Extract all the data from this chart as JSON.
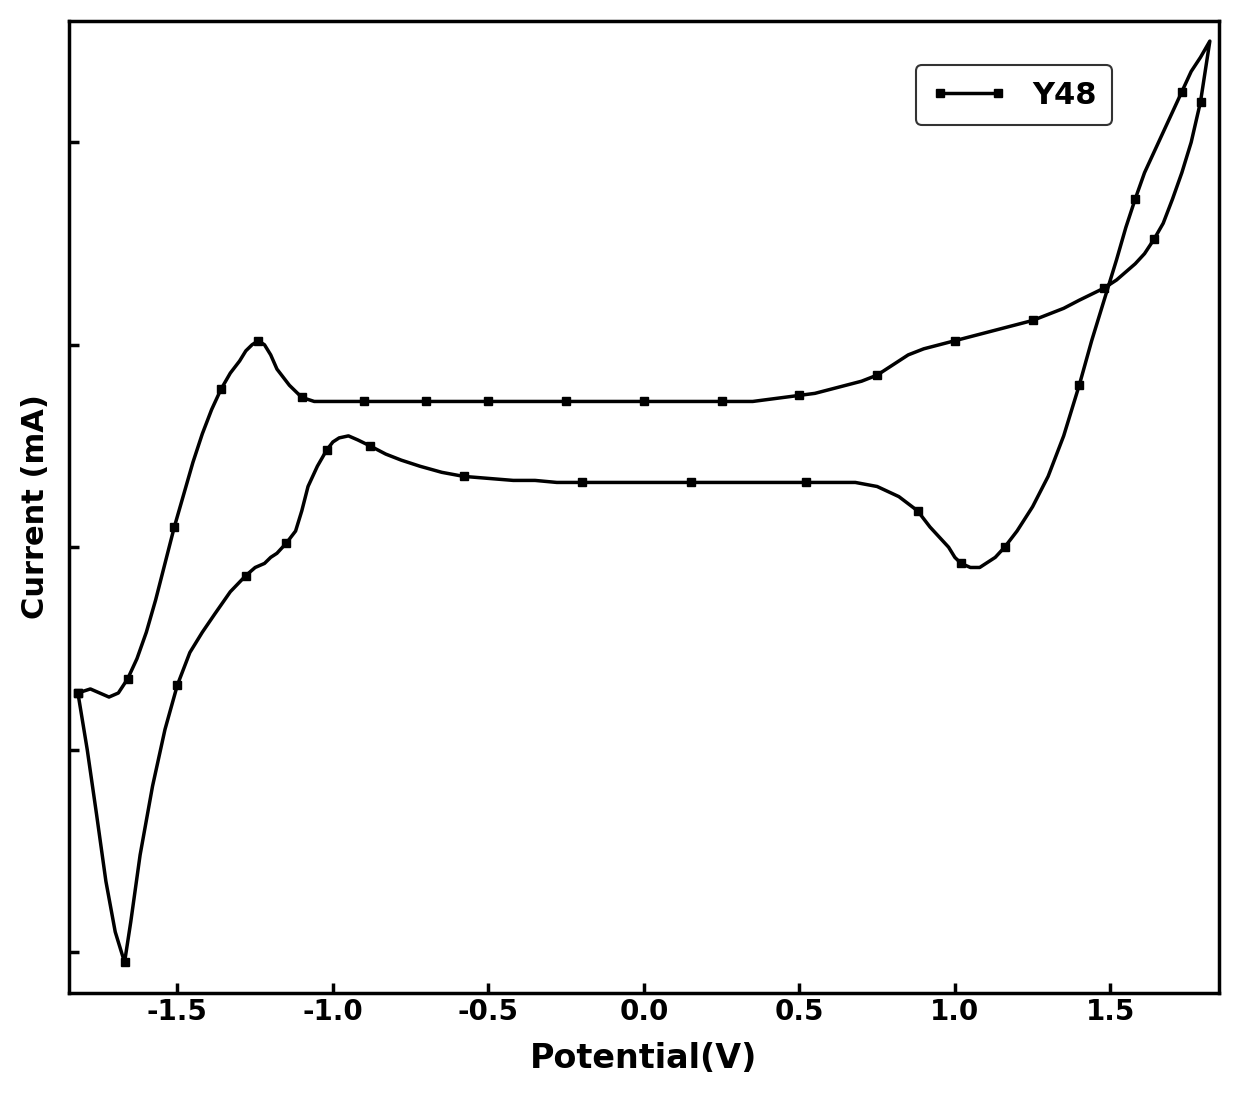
{
  "title": "",
  "xlabel": "Potential(V)",
  "ylabel": "Current (mA)",
  "legend_label": "Y48",
  "line_color": "#000000",
  "marker": "s",
  "marker_size": 6,
  "line_width": 2.5,
  "xlim": [
    -1.85,
    1.85
  ],
  "ylim": [
    -2.2,
    2.6
  ],
  "xticks": [
    -1.5,
    -1.0,
    -0.5,
    0.0,
    0.5,
    1.0,
    1.5
  ],
  "background_color": "#ffffff",
  "xlabel_fontsize": 24,
  "ylabel_fontsize": 22,
  "tick_fontsize": 20,
  "legend_fontsize": 22,
  "cv_scan": [
    [
      -1.82,
      -0.72
    ],
    [
      -1.79,
      -1.0
    ],
    [
      -1.76,
      -1.32
    ],
    [
      -1.73,
      -1.65
    ],
    [
      -1.7,
      -1.9
    ],
    [
      -1.67,
      -2.05
    ],
    [
      -1.65,
      -1.85
    ],
    [
      -1.62,
      -1.52
    ],
    [
      -1.58,
      -1.18
    ],
    [
      -1.54,
      -0.9
    ],
    [
      -1.5,
      -0.68
    ],
    [
      -1.46,
      -0.52
    ],
    [
      -1.42,
      -0.42
    ],
    [
      -1.38,
      -0.33
    ],
    [
      -1.33,
      -0.22
    ],
    [
      -1.28,
      -0.14
    ],
    [
      -1.25,
      -0.1
    ],
    [
      -1.22,
      -0.08
    ],
    [
      -1.2,
      -0.05
    ],
    [
      -1.18,
      -0.03
    ],
    [
      -1.15,
      0.02
    ],
    [
      -1.12,
      0.08
    ],
    [
      -1.1,
      0.18
    ],
    [
      -1.08,
      0.3
    ],
    [
      -1.05,
      0.4
    ],
    [
      -1.02,
      0.48
    ],
    [
      -1.0,
      0.52
    ],
    [
      -0.98,
      0.54
    ],
    [
      -0.95,
      0.55
    ],
    [
      -0.92,
      0.53
    ],
    [
      -0.88,
      0.5
    ],
    [
      -0.83,
      0.46
    ],
    [
      -0.78,
      0.43
    ],
    [
      -0.72,
      0.4
    ],
    [
      -0.65,
      0.37
    ],
    [
      -0.58,
      0.35
    ],
    [
      -0.5,
      0.34
    ],
    [
      -0.42,
      0.33
    ],
    [
      -0.35,
      0.33
    ],
    [
      -0.28,
      0.32
    ],
    [
      -0.2,
      0.32
    ],
    [
      -0.12,
      0.32
    ],
    [
      -0.05,
      0.32
    ],
    [
      0.0,
      0.32
    ],
    [
      0.08,
      0.32
    ],
    [
      0.15,
      0.32
    ],
    [
      0.22,
      0.32
    ],
    [
      0.3,
      0.32
    ],
    [
      0.38,
      0.32
    ],
    [
      0.45,
      0.32
    ],
    [
      0.52,
      0.32
    ],
    [
      0.6,
      0.32
    ],
    [
      0.68,
      0.32
    ],
    [
      0.75,
      0.3
    ],
    [
      0.82,
      0.25
    ],
    [
      0.88,
      0.18
    ],
    [
      0.92,
      0.1
    ],
    [
      0.95,
      0.05
    ],
    [
      0.98,
      0.0
    ],
    [
      1.0,
      -0.05
    ],
    [
      1.02,
      -0.08
    ],
    [
      1.05,
      -0.1
    ],
    [
      1.08,
      -0.1
    ],
    [
      1.1,
      -0.08
    ],
    [
      1.13,
      -0.05
    ],
    [
      1.16,
      0.0
    ],
    [
      1.2,
      0.08
    ],
    [
      1.25,
      0.2
    ],
    [
      1.3,
      0.35
    ],
    [
      1.35,
      0.55
    ],
    [
      1.4,
      0.8
    ],
    [
      1.44,
      1.02
    ],
    [
      1.48,
      1.22
    ],
    [
      1.52,
      1.42
    ],
    [
      1.55,
      1.58
    ],
    [
      1.58,
      1.72
    ],
    [
      1.61,
      1.85
    ],
    [
      1.64,
      1.95
    ],
    [
      1.67,
      2.05
    ],
    [
      1.7,
      2.15
    ],
    [
      1.73,
      2.25
    ],
    [
      1.76,
      2.35
    ],
    [
      1.79,
      2.42
    ],
    [
      1.82,
      2.5
    ],
    [
      1.82,
      2.5
    ],
    [
      1.79,
      2.2
    ],
    [
      1.76,
      2.0
    ],
    [
      1.73,
      1.85
    ],
    [
      1.7,
      1.72
    ],
    [
      1.67,
      1.6
    ],
    [
      1.64,
      1.52
    ],
    [
      1.61,
      1.45
    ],
    [
      1.58,
      1.4
    ],
    [
      1.55,
      1.36
    ],
    [
      1.52,
      1.32
    ],
    [
      1.48,
      1.28
    ],
    [
      1.44,
      1.25
    ],
    [
      1.4,
      1.22
    ],
    [
      1.35,
      1.18
    ],
    [
      1.3,
      1.15
    ],
    [
      1.25,
      1.12
    ],
    [
      1.2,
      1.1
    ],
    [
      1.15,
      1.08
    ],
    [
      1.1,
      1.06
    ],
    [
      1.05,
      1.04
    ],
    [
      1.0,
      1.02
    ],
    [
      0.95,
      1.0
    ],
    [
      0.9,
      0.98
    ],
    [
      0.85,
      0.95
    ],
    [
      0.8,
      0.9
    ],
    [
      0.75,
      0.85
    ],
    [
      0.7,
      0.82
    ],
    [
      0.65,
      0.8
    ],
    [
      0.6,
      0.78
    ],
    [
      0.55,
      0.76
    ],
    [
      0.5,
      0.75
    ],
    [
      0.45,
      0.74
    ],
    [
      0.4,
      0.73
    ],
    [
      0.35,
      0.72
    ],
    [
      0.3,
      0.72
    ],
    [
      0.25,
      0.72
    ],
    [
      0.2,
      0.72
    ],
    [
      0.15,
      0.72
    ],
    [
      0.1,
      0.72
    ],
    [
      0.05,
      0.72
    ],
    [
      0.0,
      0.72
    ],
    [
      -0.05,
      0.72
    ],
    [
      -0.1,
      0.72
    ],
    [
      -0.15,
      0.72
    ],
    [
      -0.2,
      0.72
    ],
    [
      -0.25,
      0.72
    ],
    [
      -0.3,
      0.72
    ],
    [
      -0.35,
      0.72
    ],
    [
      -0.4,
      0.72
    ],
    [
      -0.45,
      0.72
    ],
    [
      -0.5,
      0.72
    ],
    [
      -0.55,
      0.72
    ],
    [
      -0.58,
      0.72
    ],
    [
      -0.62,
      0.72
    ],
    [
      -0.66,
      0.72
    ],
    [
      -0.7,
      0.72
    ],
    [
      -0.74,
      0.72
    ],
    [
      -0.78,
      0.72
    ],
    [
      -0.82,
      0.72
    ],
    [
      -0.86,
      0.72
    ],
    [
      -0.9,
      0.72
    ],
    [
      -0.94,
      0.72
    ],
    [
      -0.98,
      0.72
    ],
    [
      -1.02,
      0.72
    ],
    [
      -1.06,
      0.72
    ],
    [
      -1.1,
      0.74
    ],
    [
      -1.14,
      0.8
    ],
    [
      -1.18,
      0.88
    ],
    [
      -1.2,
      0.95
    ],
    [
      -1.22,
      1.0
    ],
    [
      -1.24,
      1.02
    ],
    [
      -1.26,
      1.0
    ],
    [
      -1.28,
      0.97
    ],
    [
      -1.3,
      0.92
    ],
    [
      -1.33,
      0.86
    ],
    [
      -1.36,
      0.78
    ],
    [
      -1.39,
      0.68
    ],
    [
      -1.42,
      0.56
    ],
    [
      -1.45,
      0.42
    ],
    [
      -1.48,
      0.26
    ],
    [
      -1.51,
      0.1
    ],
    [
      -1.54,
      -0.08
    ],
    [
      -1.57,
      -0.26
    ],
    [
      -1.6,
      -0.42
    ],
    [
      -1.63,
      -0.55
    ],
    [
      -1.66,
      -0.65
    ],
    [
      -1.69,
      -0.72
    ],
    [
      -1.72,
      -0.74
    ],
    [
      -1.75,
      -0.72
    ],
    [
      -1.78,
      -0.7
    ],
    [
      -1.82,
      -0.72
    ]
  ]
}
